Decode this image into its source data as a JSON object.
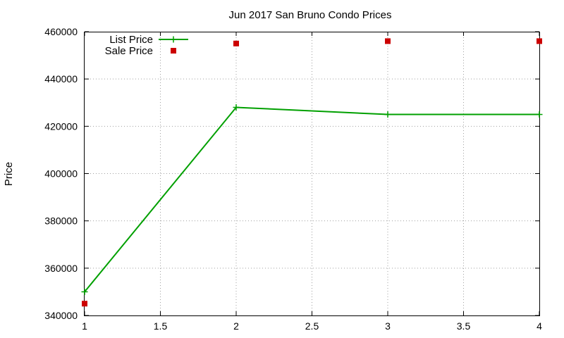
{
  "chart_data": {
    "type": "line",
    "title": "Jun 2017 San Bruno Condo Prices",
    "xlabel": "",
    "ylabel": "Price",
    "xlim": [
      1,
      4
    ],
    "ylim": [
      340000,
      460000
    ],
    "x_ticks": [
      1,
      1.5,
      2,
      2.5,
      3,
      3.5,
      4
    ],
    "x_tick_labels": [
      "1",
      "1.5",
      "2",
      "2.5",
      "3",
      "3.5",
      "4"
    ],
    "y_ticks": [
      340000,
      360000,
      380000,
      400000,
      420000,
      440000,
      460000
    ],
    "y_tick_labels": [
      "340000",
      "360000",
      "380000",
      "400000",
      "420000",
      "440000",
      "460000"
    ],
    "grid": true,
    "legend_position": "top-left",
    "series": [
      {
        "name": "List Price",
        "style": "line-with-plus-markers",
        "color": "#00a000",
        "x": [
          1,
          2,
          3,
          4
        ],
        "y": [
          350000,
          428000,
          425000,
          425000
        ]
      },
      {
        "name": "Sale Price",
        "style": "square-markers",
        "color": "#cc0000",
        "x": [
          1,
          2,
          3,
          4
        ],
        "y": [
          345000,
          455000,
          456000,
          456000
        ]
      }
    ]
  }
}
